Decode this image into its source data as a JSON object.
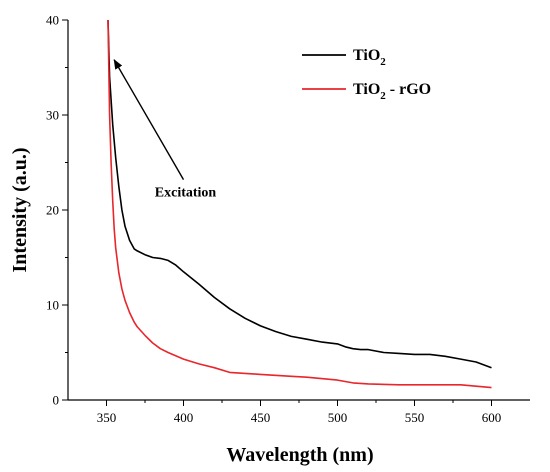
{
  "chart_data": {
    "type": "line",
    "title": "",
    "xlabel": "Wavelength (nm)",
    "ylabel": "Intensity (a.u.)",
    "xlim": [
      325,
      625
    ],
    "ylim": [
      0,
      40
    ],
    "xticks": [
      350,
      400,
      450,
      500,
      550,
      600
    ],
    "yticks": [
      0,
      10,
      20,
      30,
      40
    ],
    "grid": false,
    "legend_position": "top-right",
    "series": [
      {
        "name_base": "TiO",
        "name_sub": "2",
        "name_rest": "",
        "color": "#000000",
        "x": [
          351,
          352,
          354,
          356,
          358,
          360,
          362,
          365,
          368,
          370,
          375,
          380,
          385,
          390,
          395,
          400,
          410,
          420,
          430,
          440,
          450,
          460,
          470,
          480,
          490,
          500,
          505,
          510,
          515,
          520,
          530,
          540,
          550,
          560,
          570,
          580,
          590,
          600
        ],
        "y": [
          40,
          34,
          29,
          25.5,
          22.5,
          20,
          18.3,
          16.8,
          15.9,
          15.7,
          15.3,
          15.0,
          14.9,
          14.7,
          14.2,
          13.5,
          12.2,
          10.8,
          9.6,
          8.6,
          7.8,
          7.2,
          6.7,
          6.4,
          6.1,
          5.9,
          5.6,
          5.4,
          5.3,
          5.3,
          5.0,
          4.9,
          4.8,
          4.8,
          4.6,
          4.3,
          4.0,
          3.4
        ]
      },
      {
        "name_base": "TiO",
        "name_sub": "2",
        "name_rest": " - rGO",
        "color": "#e8262b",
        "x": [
          351,
          352,
          353,
          354,
          355,
          356,
          358,
          360,
          362,
          365,
          368,
          370,
          375,
          380,
          385,
          390,
          400,
          410,
          420,
          430,
          450,
          470,
          480,
          500,
          510,
          520,
          540,
          560,
          580,
          600
        ],
        "y": [
          40,
          30,
          25,
          21,
          18,
          16,
          13.4,
          11.7,
          10.5,
          9.2,
          8.2,
          7.7,
          6.8,
          6.0,
          5.4,
          5.0,
          4.3,
          3.8,
          3.4,
          2.9,
          2.7,
          2.5,
          2.4,
          2.1,
          1.8,
          1.7,
          1.6,
          1.6,
          1.6,
          1.3
        ]
      }
    ],
    "annotations": [
      {
        "text": "Excitation",
        "arrow_from": [
          400,
          23.2
        ],
        "arrow_to": [
          355,
          35.8
        ]
      }
    ]
  }
}
